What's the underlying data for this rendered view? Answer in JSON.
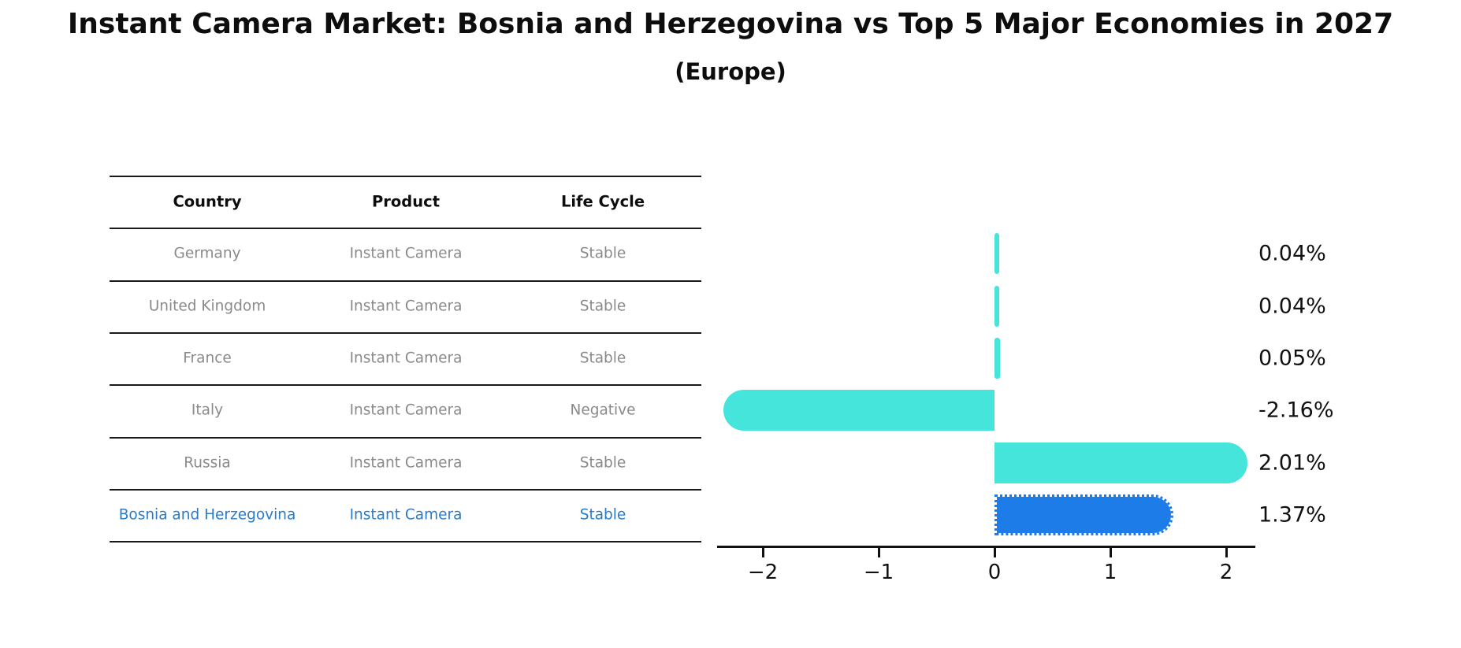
{
  "header": {
    "title": "Instant Camera Market: Bosnia and Herzegovina vs Top 5 Major Economies in 2027",
    "subtitle": "(Europe)"
  },
  "table": {
    "columns": [
      "Country",
      "Product",
      "Life Cycle"
    ],
    "rows": [
      {
        "country": "Germany",
        "product": "Instant Camera",
        "life_cycle": "Stable",
        "highlight": false
      },
      {
        "country": "United Kingdom",
        "product": "Instant Camera",
        "life_cycle": "Stable",
        "highlight": false
      },
      {
        "country": "France",
        "product": "Instant Camera",
        "life_cycle": "Stable",
        "highlight": false
      },
      {
        "country": "Italy",
        "product": "Instant Camera",
        "life_cycle": "Negative",
        "highlight": false
      },
      {
        "country": "Russia",
        "product": "Instant Camera",
        "life_cycle": "Stable",
        "highlight": false
      },
      {
        "country": "Bosnia and Herzegovina",
        "product": "Instant Camera",
        "life_cycle": "Stable",
        "highlight": true
      }
    ]
  },
  "chart_data": {
    "type": "bar",
    "orientation": "horizontal",
    "title": "Instant Camera Market: Bosnia and Herzegovina vs Top 5 Major Economies in 2027",
    "subtitle": "(Europe)",
    "categories": [
      "Germany",
      "United Kingdom",
      "France",
      "Italy",
      "Russia",
      "Bosnia and Herzegovina"
    ],
    "values": [
      0.04,
      0.04,
      0.05,
      -2.16,
      2.01,
      1.37
    ],
    "value_labels": [
      "0.04%",
      "0.04%",
      "0.05%",
      "-2.16%",
      "2.01%",
      "1.37%"
    ],
    "highlight_index": 5,
    "x_tick_values": [
      -2,
      -1,
      0,
      1,
      2
    ],
    "x_tick_labels": [
      "−2",
      "−1",
      "0",
      "1",
      "2"
    ],
    "xlim": [
      -2.4,
      2.25
    ],
    "grid": false,
    "legend": "none"
  },
  "colors": {
    "bar_default": "#46e5dc",
    "bar_highlight": "#1e7ce8",
    "highlight_text": "#2c7bc9",
    "table_text": "#8a8a8a",
    "axis": "#111111"
  }
}
